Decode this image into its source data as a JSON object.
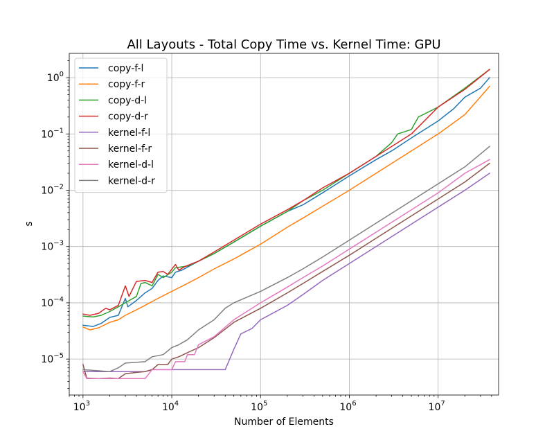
{
  "chart_data": {
    "type": "line",
    "title": "All Layouts - Total Copy Time vs. Kernel Time: GPU",
    "xlabel": "Number of Elements",
    "ylabel": "s",
    "xscale": "log",
    "yscale": "log",
    "xlim": [
      700,
      48000000
    ],
    "ylim": [
      2.3e-06,
      2.7
    ],
    "grid": true,
    "legend_position": "upper-left",
    "x_ticks": [
      {
        "value": 1000,
        "base": "10",
        "exp": "3"
      },
      {
        "value": 10000,
        "base": "10",
        "exp": "4"
      },
      {
        "value": 100000,
        "base": "10",
        "exp": "5"
      },
      {
        "value": 1000000,
        "base": "10",
        "exp": "6"
      },
      {
        "value": 10000000,
        "base": "10",
        "exp": "7"
      }
    ],
    "y_ticks": [
      {
        "value": 1e-05,
        "base": "10",
        "exp": "−5"
      },
      {
        "value": 0.0001,
        "base": "10",
        "exp": "−4"
      },
      {
        "value": 0.001,
        "base": "10",
        "exp": "−3"
      },
      {
        "value": 0.01,
        "base": "10",
        "exp": "−2"
      },
      {
        "value": 0.1,
        "base": "10",
        "exp": "−1"
      },
      {
        "value": 1,
        "base": "10",
        "exp": "0"
      }
    ],
    "series": [
      {
        "name": "copy-f-l",
        "color": "#1f77b4",
        "points": [
          [
            1000,
            4e-05
          ],
          [
            1300,
            3.8e-05
          ],
          [
            1600,
            4.3e-05
          ],
          [
            2000,
            5.5e-05
          ],
          [
            2500,
            6e-05
          ],
          [
            3000,
            0.00012
          ],
          [
            3200,
            8.5e-05
          ],
          [
            4000,
            0.00011
          ],
          [
            5000,
            0.00015
          ],
          [
            6000,
            0.00018
          ],
          [
            7000,
            0.00025
          ],
          [
            8000,
            0.0003
          ],
          [
            10000,
            0.00028
          ],
          [
            11000,
            0.00035
          ],
          [
            13000,
            0.00038
          ],
          [
            20000,
            0.00055
          ],
          [
            30000,
            0.00075
          ],
          [
            50000,
            0.0012
          ],
          [
            100000,
            0.0023
          ],
          [
            200000,
            0.0042
          ],
          [
            300000,
            0.0055
          ],
          [
            500000,
            0.009
          ],
          [
            1000000,
            0.018
          ],
          [
            2000000,
            0.035
          ],
          [
            3000000,
            0.05
          ],
          [
            5000000,
            0.085
          ],
          [
            10000000,
            0.17
          ],
          [
            15000000,
            0.28
          ],
          [
            20000000,
            0.45
          ],
          [
            30000000,
            0.65
          ],
          [
            38000000,
            1.0
          ]
        ]
      },
      {
        "name": "copy-f-r",
        "color": "#ff7f0e",
        "points": [
          [
            1000,
            3.7e-05
          ],
          [
            1200,
            3.3e-05
          ],
          [
            1500,
            3.6e-05
          ],
          [
            2000,
            4.5e-05
          ],
          [
            2500,
            5e-05
          ],
          [
            3000,
            6e-05
          ],
          [
            4000,
            7.5e-05
          ],
          [
            5000,
            9e-05
          ],
          [
            7000,
            0.00012
          ],
          [
            10000,
            0.00016
          ],
          [
            15000,
            0.00022
          ],
          [
            20000,
            0.00028
          ],
          [
            30000,
            0.0004
          ],
          [
            50000,
            0.0006
          ],
          [
            100000,
            0.0011
          ],
          [
            200000,
            0.0022
          ],
          [
            300000,
            0.0032
          ],
          [
            500000,
            0.0052
          ],
          [
            1000000,
            0.01
          ],
          [
            2000000,
            0.02
          ],
          [
            5000000,
            0.05
          ],
          [
            10000000,
            0.1
          ],
          [
            20000000,
            0.22
          ],
          [
            38000000,
            0.7
          ]
        ]
      },
      {
        "name": "copy-d-l",
        "color": "#2ca02c",
        "points": [
          [
            1000,
            5.8e-05
          ],
          [
            1300,
            5.6e-05
          ],
          [
            1600,
            6e-05
          ],
          [
            2000,
            7e-05
          ],
          [
            2500,
            8.5e-05
          ],
          [
            3000,
            0.0001
          ],
          [
            4000,
            0.00013
          ],
          [
            4500,
            0.00022
          ],
          [
            5000,
            0.00023
          ],
          [
            6000,
            0.0002
          ],
          [
            7000,
            0.00032
          ],
          [
            8000,
            0.00028
          ],
          [
            10000,
            0.00035
          ],
          [
            11000,
            0.00042
          ],
          [
            15000,
            0.00045
          ],
          [
            20000,
            0.00055
          ],
          [
            30000,
            0.00075
          ],
          [
            50000,
            0.0012
          ],
          [
            100000,
            0.0023
          ],
          [
            200000,
            0.0042
          ],
          [
            300000,
            0.0065
          ],
          [
            500000,
            0.01
          ],
          [
            1000000,
            0.02
          ],
          [
            2000000,
            0.04
          ],
          [
            3000000,
            0.07
          ],
          [
            3500000,
            0.1
          ],
          [
            5000000,
            0.12
          ],
          [
            6000000,
            0.2
          ],
          [
            10000000,
            0.3
          ],
          [
            20000000,
            0.65
          ],
          [
            38000000,
            1.4
          ]
        ]
      },
      {
        "name": "copy-d-r",
        "color": "#d62728",
        "points": [
          [
            1000,
            6.3e-05
          ],
          [
            1200,
            6e-05
          ],
          [
            1500,
            6.5e-05
          ],
          [
            1800,
            8e-05
          ],
          [
            2000,
            7.5e-05
          ],
          [
            2500,
            9e-05
          ],
          [
            3000,
            0.0002
          ],
          [
            3300,
            0.00013
          ],
          [
            4000,
            0.00024
          ],
          [
            5000,
            0.00025
          ],
          [
            6000,
            0.00023
          ],
          [
            7000,
            0.00035
          ],
          [
            8000,
            0.00036
          ],
          [
            9000,
            0.00032
          ],
          [
            11000,
            0.00048
          ],
          [
            12000,
            0.00038
          ],
          [
            14000,
            0.00044
          ],
          [
            20000,
            0.00055
          ],
          [
            30000,
            0.0008
          ],
          [
            50000,
            0.0013
          ],
          [
            100000,
            0.0025
          ],
          [
            200000,
            0.0045
          ],
          [
            300000,
            0.0065
          ],
          [
            500000,
            0.011
          ],
          [
            1000000,
            0.02
          ],
          [
            2000000,
            0.04
          ],
          [
            5000000,
            0.1
          ],
          [
            10000000,
            0.3
          ],
          [
            20000000,
            0.62
          ],
          [
            38000000,
            1.4
          ]
        ]
      },
      {
        "name": "kernel-f-l",
        "color": "#9467bd",
        "points": [
          [
            1000,
            6e-06
          ],
          [
            1200,
            6e-06
          ],
          [
            3000,
            6e-06
          ],
          [
            5000,
            6e-06
          ],
          [
            6000,
            6.5e-06
          ],
          [
            10000,
            6.5e-06
          ],
          [
            20000,
            6.5e-06
          ],
          [
            40000,
            6.5e-06
          ],
          [
            50000,
            1.5e-05
          ],
          [
            60000,
            2.8e-05
          ],
          [
            80000,
            3.5e-05
          ],
          [
            100000,
            5e-05
          ],
          [
            200000,
            9e-05
          ],
          [
            300000,
            0.00014
          ],
          [
            500000,
            0.00025
          ],
          [
            1000000,
            0.0005
          ],
          [
            2000000,
            0.001
          ],
          [
            5000000,
            0.0025
          ],
          [
            10000000,
            0.005
          ],
          [
            20000000,
            0.01
          ],
          [
            38000000,
            0.02
          ]
        ]
      },
      {
        "name": "kernel-f-r",
        "color": "#8c564b",
        "points": [
          [
            1000,
            8e-06
          ],
          [
            1100,
            4.6e-06
          ],
          [
            1500,
            4.5e-06
          ],
          [
            2000,
            4.6e-06
          ],
          [
            2500,
            4.5e-06
          ],
          [
            3000,
            5.5e-06
          ],
          [
            4000,
            5.8e-06
          ],
          [
            5000,
            6e-06
          ],
          [
            6000,
            6.5e-06
          ],
          [
            7000,
            8e-06
          ],
          [
            9000,
            8e-06
          ],
          [
            10000,
            1e-05
          ],
          [
            12000,
            1.1e-05
          ],
          [
            15000,
            1.3e-05
          ],
          [
            20000,
            1.6e-05
          ],
          [
            30000,
            2.4e-05
          ],
          [
            50000,
            4.5e-05
          ],
          [
            100000,
            8e-05
          ],
          [
            200000,
            0.00015
          ],
          [
            300000,
            0.00022
          ],
          [
            500000,
            0.00036
          ],
          [
            1000000,
            0.0007
          ],
          [
            2000000,
            0.0014
          ],
          [
            5000000,
            0.0035
          ],
          [
            10000000,
            0.007
          ],
          [
            20000000,
            0.014
          ],
          [
            38000000,
            0.03
          ]
        ]
      },
      {
        "name": "kernel-d-l",
        "color": "#e377c2",
        "points": [
          [
            1000,
            6e-06
          ],
          [
            1100,
            4.5e-06
          ],
          [
            1500,
            4.5e-06
          ],
          [
            2000,
            4.5e-06
          ],
          [
            3000,
            4.5e-06
          ],
          [
            5000,
            4.5e-06
          ],
          [
            6000,
            6.5e-06
          ],
          [
            10000,
            6.5e-06
          ],
          [
            11000,
            9e-06
          ],
          [
            14000,
            9e-06
          ],
          [
            15000,
            1.2e-05
          ],
          [
            18000,
            1.2e-05
          ],
          [
            20000,
            1.8e-05
          ],
          [
            30000,
            2.5e-05
          ],
          [
            50000,
            5e-05
          ],
          [
            100000,
            0.0001
          ],
          [
            200000,
            0.00019
          ],
          [
            300000,
            0.00028
          ],
          [
            500000,
            0.00045
          ],
          [
            1000000,
            0.0009
          ],
          [
            2000000,
            0.0018
          ],
          [
            5000000,
            0.0045
          ],
          [
            10000000,
            0.009
          ],
          [
            20000000,
            0.02
          ],
          [
            38000000,
            0.035
          ]
        ]
      },
      {
        "name": "kernel-d-r",
        "color": "#7f7f7f",
        "points": [
          [
            1000,
            6.5e-06
          ],
          [
            1500,
            6.2e-06
          ],
          [
            2000,
            6e-06
          ],
          [
            2500,
            7e-06
          ],
          [
            3000,
            8.5e-06
          ],
          [
            5000,
            9e-06
          ],
          [
            6000,
            1.1e-05
          ],
          [
            8000,
            1.2e-05
          ],
          [
            10000,
            1.6e-05
          ],
          [
            12000,
            1.8e-05
          ],
          [
            15000,
            2.2e-05
          ],
          [
            20000,
            3.3e-05
          ],
          [
            30000,
            5e-05
          ],
          [
            40000,
            8e-05
          ],
          [
            50000,
            0.0001
          ],
          [
            100000,
            0.00016
          ],
          [
            200000,
            0.00028
          ],
          [
            300000,
            0.0004
          ],
          [
            500000,
            0.00065
          ],
          [
            1000000,
            0.0013
          ],
          [
            2000000,
            0.0026
          ],
          [
            5000000,
            0.0065
          ],
          [
            10000000,
            0.013
          ],
          [
            20000000,
            0.026
          ],
          [
            38000000,
            0.06
          ]
        ]
      }
    ]
  }
}
